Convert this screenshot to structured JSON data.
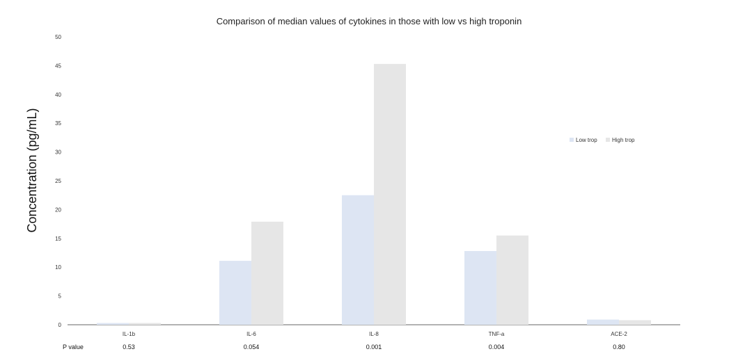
{
  "chart_data": {
    "type": "bar",
    "title": "Comparison of median values of cytokines in those with low vs high troponin",
    "xlabel": "",
    "ylabel": "Concentration (pg/mL)",
    "ylim": [
      0,
      50
    ],
    "yticks": [
      0,
      5,
      10,
      15,
      20,
      25,
      30,
      35,
      40,
      45,
      50
    ],
    "categories": [
      "IL-1b",
      "IL-6",
      "IL-8",
      "TNF-a",
      "ACE-2"
    ],
    "series": [
      {
        "name": "Low trop",
        "color": "#dde5f3",
        "values": [
          0.3,
          11.1,
          22.5,
          12.8,
          0.9
        ]
      },
      {
        "name": "High trop",
        "color": "#e6e6e6",
        "values": [
          0.3,
          17.9,
          45.3,
          15.5,
          0.8
        ]
      }
    ],
    "pvalue_label": "P value",
    "pvalues": [
      "0.53",
      "0.054",
      "0.001",
      "0.004",
      "0.80"
    ],
    "grid": false,
    "legend_position": "right"
  }
}
